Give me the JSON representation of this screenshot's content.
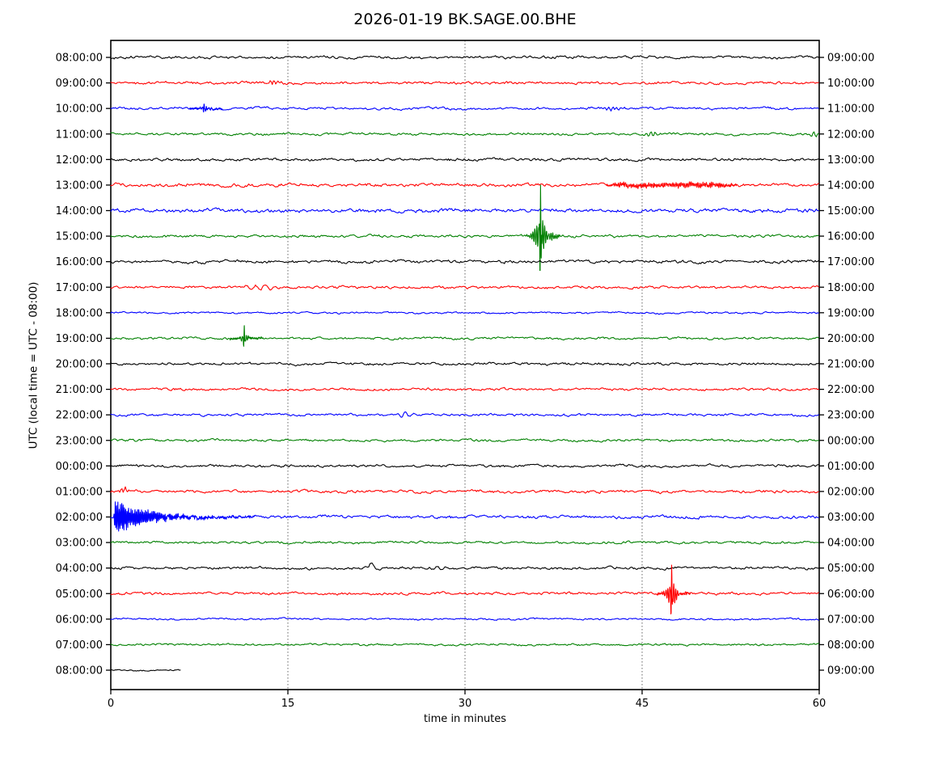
{
  "title": "2026-01-19 BK.SAGE.00.BHE",
  "x_axis": {
    "label": "time in minutes",
    "ticks": [
      0,
      15,
      30,
      45,
      60
    ],
    "range": [
      0,
      60
    ]
  },
  "y_axis": {
    "label": "UTC (local time = UTC - 08:00)"
  },
  "chart_data": {
    "type": "line",
    "title": "2026-01-19 BK.SAGE.00.BHE",
    "xlabel": "time in minutes",
    "ylabel": "UTC (local time = UTC - 08:00)",
    "x_range_minutes": [
      0,
      60
    ],
    "x_ticks": [
      0,
      15,
      30,
      45,
      60
    ],
    "grid_minutes": [
      15,
      30,
      45
    ],
    "grid_style": "dotted-vertical",
    "minutes_per_row": 60,
    "trace_color_cycle": [
      "#000000",
      "#ff0000",
      "#0000ff",
      "#008000"
    ],
    "frame_color": "#000000",
    "grid_color": "#666666",
    "rows": [
      {
        "utc": "08:00:00",
        "right": "09:00:00",
        "color": "#000000",
        "noise": 1.3,
        "end_minute": 60
      },
      {
        "utc": "09:00:00",
        "right": "10:00:00",
        "color": "#ff0000",
        "noise": 1.3,
        "end_minute": 60
      },
      {
        "utc": "10:00:00",
        "right": "11:00:00",
        "color": "#0000ff",
        "noise": 1.2,
        "end_minute": 60
      },
      {
        "utc": "11:00:00",
        "right": "12:00:00",
        "color": "#008000",
        "noise": 1.2,
        "end_minute": 60
      },
      {
        "utc": "12:00:00",
        "right": "13:00:00",
        "color": "#000000",
        "noise": 1.4,
        "end_minute": 60
      },
      {
        "utc": "13:00:00",
        "right": "14:00:00",
        "color": "#ff0000",
        "noise": 1.6,
        "end_minute": 60
      },
      {
        "utc": "14:00:00",
        "right": "15:00:00",
        "color": "#0000ff",
        "noise": 1.9,
        "end_minute": 60
      },
      {
        "utc": "15:00:00",
        "right": "16:00:00",
        "color": "#008000",
        "noise": 1.3,
        "end_minute": 60
      },
      {
        "utc": "16:00:00",
        "right": "17:00:00",
        "color": "#000000",
        "noise": 1.5,
        "end_minute": 60
      },
      {
        "utc": "17:00:00",
        "right": "18:00:00",
        "color": "#ff0000",
        "noise": 1.3,
        "end_minute": 60
      },
      {
        "utc": "18:00:00",
        "right": "19:00:00",
        "color": "#0000ff",
        "noise": 0.9,
        "end_minute": 60
      },
      {
        "utc": "19:00:00",
        "right": "20:00:00",
        "color": "#008000",
        "noise": 1.1,
        "end_minute": 60
      },
      {
        "utc": "20:00:00",
        "right": "21:00:00",
        "color": "#000000",
        "noise": 1.3,
        "end_minute": 60
      },
      {
        "utc": "21:00:00",
        "right": "22:00:00",
        "color": "#ff0000",
        "noise": 1.2,
        "end_minute": 60
      },
      {
        "utc": "22:00:00",
        "right": "23:00:00",
        "color": "#0000ff",
        "noise": 1.2,
        "end_minute": 60
      },
      {
        "utc": "23:00:00",
        "right": "00:00:00",
        "color": "#008000",
        "noise": 1.2,
        "end_minute": 60
      },
      {
        "utc": "00:00:00",
        "right": "01:00:00",
        "color": "#000000",
        "noise": 1.3,
        "end_minute": 60
      },
      {
        "utc": "01:00:00",
        "right": "02:00:00",
        "color": "#ff0000",
        "noise": 1.4,
        "end_minute": 60
      },
      {
        "utc": "02:00:00",
        "right": "03:00:00",
        "color": "#0000ff",
        "noise": 1.5,
        "end_minute": 60
      },
      {
        "utc": "03:00:00",
        "right": "04:00:00",
        "color": "#008000",
        "noise": 1.2,
        "end_minute": 60
      },
      {
        "utc": "04:00:00",
        "right": "05:00:00",
        "color": "#000000",
        "noise": 1.3,
        "end_minute": 60
      },
      {
        "utc": "05:00:00",
        "right": "06:00:00",
        "color": "#ff0000",
        "noise": 1.3,
        "end_minute": 60
      },
      {
        "utc": "06:00:00",
        "right": "07:00:00",
        "color": "#0000ff",
        "noise": 0.9,
        "end_minute": 60
      },
      {
        "utc": "07:00:00",
        "right": "08:00:00",
        "color": "#008000",
        "noise": 1.0,
        "end_minute": 60
      },
      {
        "utc": "08:00:00",
        "right": "09:00:00",
        "color": "#000000",
        "noise": 0.7,
        "end_minute": 5.9
      }
    ],
    "events": [
      {
        "row": 1,
        "kind": "wiggle",
        "minute": 13.8,
        "amp": 2.5,
        "width": 0.4,
        "freq": 3
      },
      {
        "row": 2,
        "kind": "spike",
        "minute": 7.9,
        "amp": 4,
        "needle_w": 0.06,
        "env_amp": 2,
        "env_w": 0.25,
        "coda_amp": 0.8,
        "coda_decay": 0.4
      },
      {
        "row": 2,
        "kind": "wiggle",
        "minute": 42.5,
        "amp": 2.5,
        "width": 0.5,
        "freq": 3
      },
      {
        "row": 3,
        "kind": "wiggle",
        "minute": 45.7,
        "amp": 3.5,
        "width": 0.4,
        "freq": 2.5
      },
      {
        "row": 3,
        "kind": "wiggle",
        "minute": 59.5,
        "amp": 3,
        "width": 0.3,
        "freq": 2.5
      },
      {
        "row": 5,
        "kind": "tremor",
        "start": 43,
        "end": 52,
        "amp": 2.8,
        "freq": 7
      },
      {
        "row": 7,
        "kind": "spike",
        "minute": 36.4,
        "amp": 52,
        "needle_w": 0.07,
        "env_amp": 14,
        "env_w": 0.5,
        "coda_amp": 5,
        "coda_decay": 1.2
      },
      {
        "row": 9,
        "kind": "wiggle",
        "minute": 13.0,
        "amp": 3,
        "width": 1.0,
        "freq": 1.2
      },
      {
        "row": 11,
        "kind": "spike",
        "minute": 11.3,
        "amp": 12,
        "needle_w": 0.05,
        "env_amp": 4,
        "env_w": 0.2,
        "coda_amp": 1.5,
        "coda_decay": 0.6
      },
      {
        "row": 14,
        "kind": "wiggle",
        "minute": 24.9,
        "amp": 2.5,
        "width": 0.6,
        "freq": 1.5
      },
      {
        "row": 17,
        "kind": "wiggle",
        "minute": 1.2,
        "amp": 3,
        "width": 0.3,
        "freq": 3
      },
      {
        "row": 18,
        "kind": "burst",
        "start": 0.25,
        "amp": 22,
        "decay": 2.4,
        "freq": 9
      },
      {
        "row": 20,
        "kind": "pulse",
        "minute": 22.1,
        "amp": 7
      },
      {
        "row": 20,
        "kind": "wiggle",
        "minute": 27.6,
        "amp": 2,
        "width": 0.5,
        "freq": 1.5
      },
      {
        "row": 21,
        "kind": "spike",
        "minute": 47.5,
        "amp": 26,
        "needle_w": 0.06,
        "env_amp": 12,
        "env_w": 0.35,
        "coda_amp": 3,
        "coda_decay": 0.8
      }
    ]
  }
}
